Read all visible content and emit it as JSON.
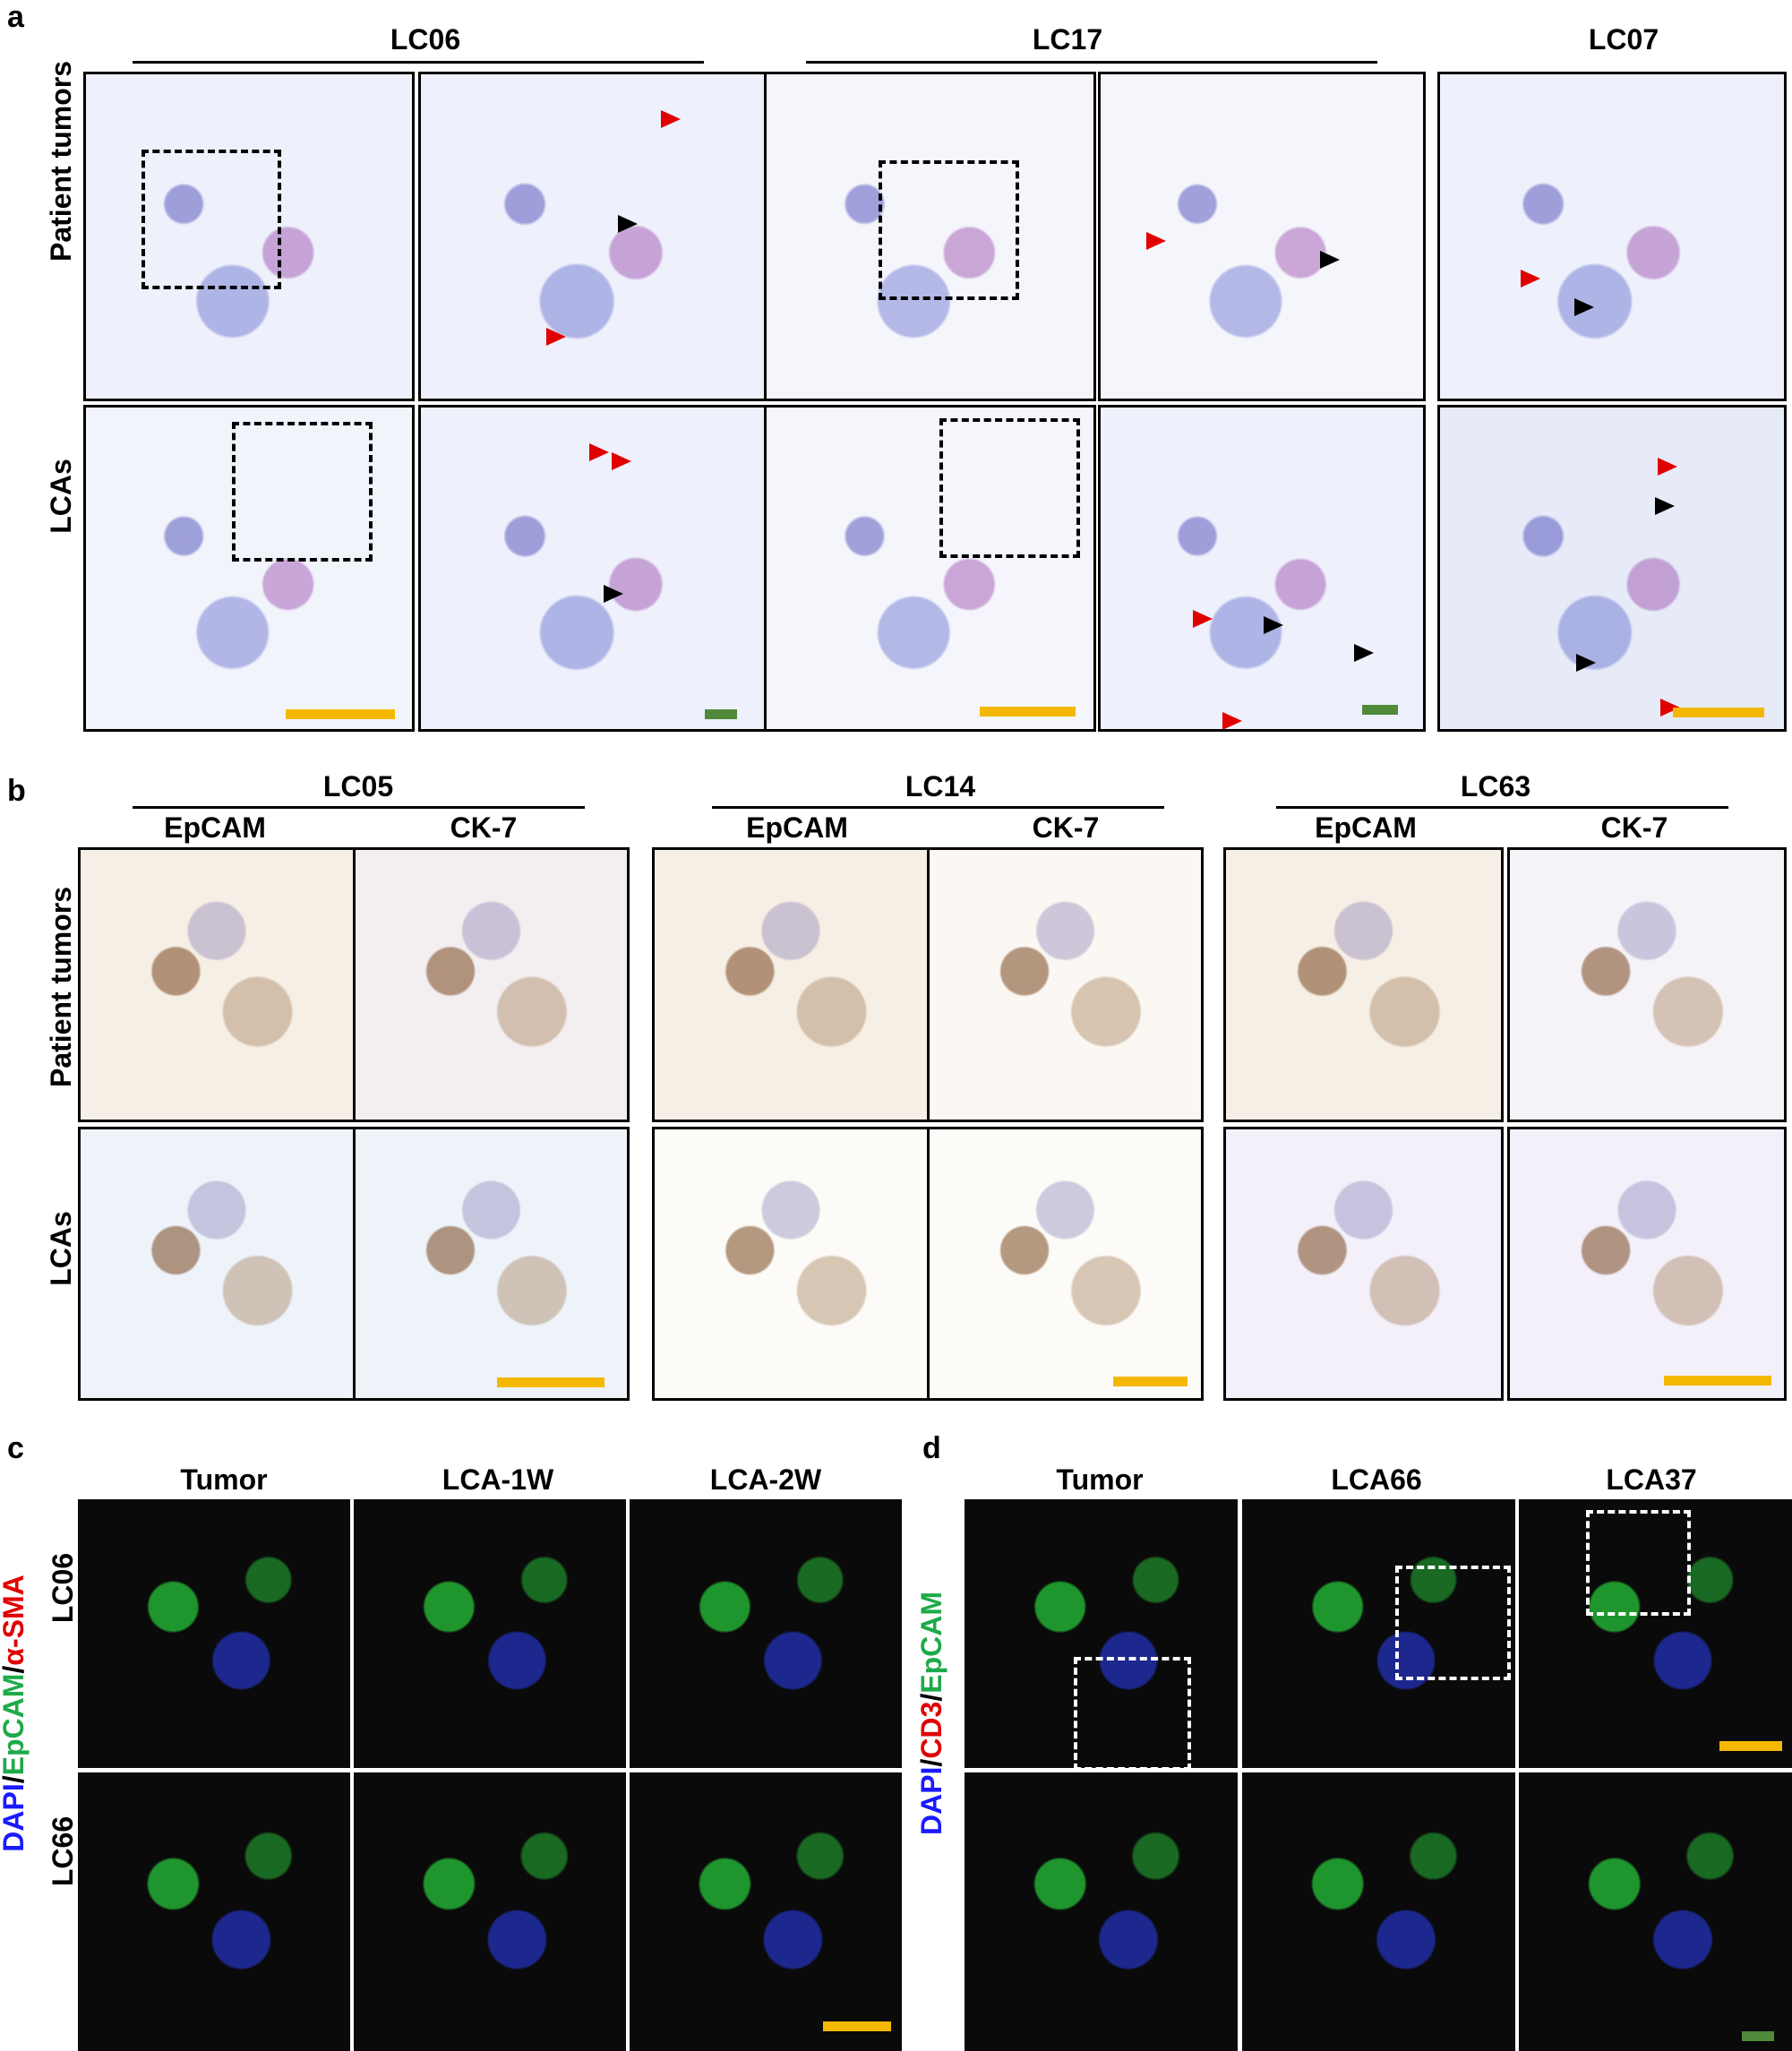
{
  "panel_a": {
    "label": "a",
    "groups": [
      "LC06",
      "LC17",
      "LC07"
    ],
    "rows": [
      "Patient tumors",
      "LCAs"
    ]
  },
  "panel_b": {
    "label": "b",
    "groups": [
      "LC05",
      "LC14",
      "LC63"
    ],
    "stains": [
      "EpCAM",
      "CK-7"
    ],
    "rows": [
      "Patient tumors",
      "LCAs"
    ]
  },
  "panel_c": {
    "label": "c",
    "columns": [
      "Tumor",
      "LCA-1W",
      "LCA-2W"
    ],
    "rows": [
      "LC06",
      "LC66"
    ],
    "channel_label": [
      "DAPI",
      "/",
      "EpCAM",
      "/",
      "α-SMA"
    ]
  },
  "panel_d": {
    "label": "d",
    "columns": [
      "Tumor",
      "LCA66",
      "LCA37"
    ],
    "channel_label": [
      "DAPI",
      "/",
      "CD3",
      "/",
      "EpCAM"
    ]
  },
  "colors": {
    "scalebar_yellow": "#f5b800",
    "scalebar_green": "#4f8a3a",
    "arrow_red": "#e00000",
    "arrow_black": "#000000",
    "dapi_blue": "#1a1aff",
    "epcam_green": "#1faa4a",
    "red_channel": "#e00000"
  }
}
